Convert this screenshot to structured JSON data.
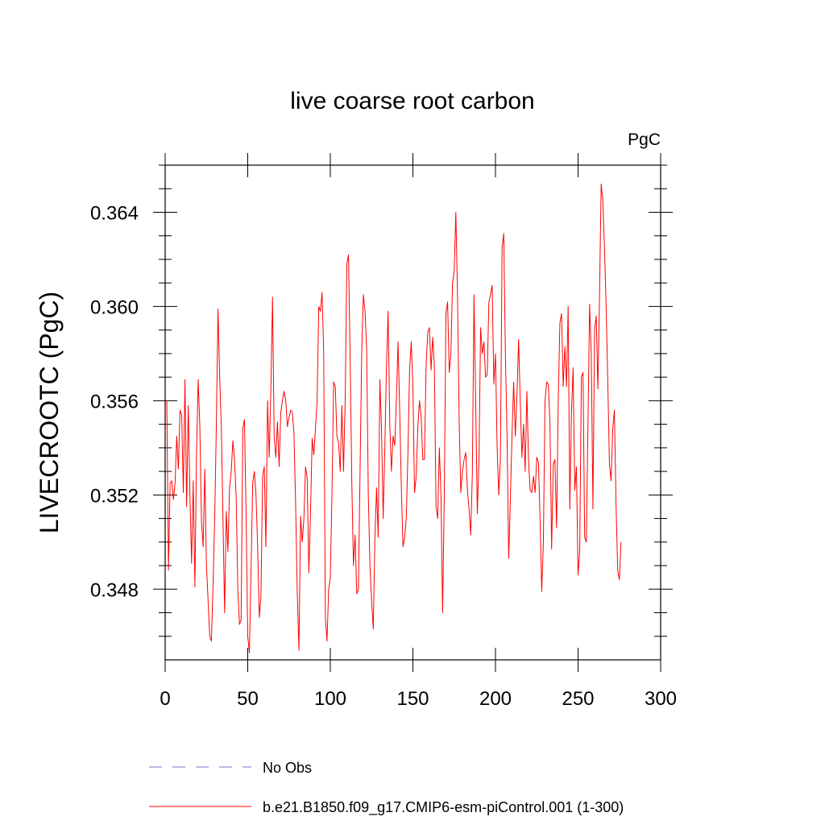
{
  "chart_data": {
    "type": "line",
    "title": "live coarse root carbon",
    "units_label": "PgC",
    "ylabel": "LIVECROOTC  (PgC)",
    "xlabel": "",
    "xlim": [
      0,
      300
    ],
    "ylim": [
      0.345,
      0.366
    ],
    "xticks": [
      0,
      50,
      100,
      150,
      200,
      250,
      300
    ],
    "xtick_labels": [
      "0",
      "50",
      "100",
      "150",
      "200",
      "250",
      "300"
    ],
    "yticks": [
      0.348,
      0.352,
      0.356,
      0.36,
      0.364
    ],
    "ytick_labels": [
      "0.348",
      "0.352",
      "0.356",
      "0.360",
      "0.364"
    ],
    "grid": false,
    "legend_position": "bottom",
    "series": [
      {
        "name": "No Obs",
        "legend_label": "No Obs",
        "color": "#7b6fc4",
        "style": "dashed",
        "values": []
      },
      {
        "name": "b.e21.B1850.f09_g17.CMIP6-esm-piControl.001 (1-300)",
        "legend_label": "b.e21.B1850.f09_g17.CMIP6-esm-piControl.001 (1-300)",
        "color": "#ff0000",
        "style": "solid",
        "x_start": 1,
        "values": [
          0.356,
          0.3488,
          0.3525,
          0.3526,
          0.3518,
          0.3525,
          0.3545,
          0.3531,
          0.3556,
          0.3554,
          0.3521,
          0.3569,
          0.3515,
          0.3558,
          0.352,
          0.3491,
          0.3526,
          0.3481,
          0.3538,
          0.3569,
          0.3549,
          0.3509,
          0.3498,
          0.3531,
          0.349,
          0.3475,
          0.346,
          0.3458,
          0.3482,
          0.351,
          0.355,
          0.3599,
          0.357,
          0.3549,
          0.351,
          0.347,
          0.3513,
          0.3496,
          0.3523,
          0.353,
          0.3543,
          0.3535,
          0.3519,
          0.348,
          0.3465,
          0.3467,
          0.3548,
          0.3552,
          0.3512,
          0.346,
          0.3453,
          0.3488,
          0.3525,
          0.353,
          0.352,
          0.3498,
          0.3468,
          0.3477,
          0.3528,
          0.3532,
          0.3498,
          0.356,
          0.3536,
          0.3565,
          0.3604,
          0.3545,
          0.3536,
          0.3551,
          0.3532,
          0.3555,
          0.356,
          0.3564,
          0.356,
          0.3549,
          0.3553,
          0.3556,
          0.3555,
          0.3546,
          0.3516,
          0.3478,
          0.3454,
          0.3511,
          0.35,
          0.351,
          0.3532,
          0.3527,
          0.3487,
          0.3512,
          0.3544,
          0.3537,
          0.3548,
          0.356,
          0.36,
          0.3598,
          0.3606,
          0.358,
          0.3468,
          0.3458,
          0.348,
          0.3485,
          0.352,
          0.3568,
          0.3566,
          0.3545,
          0.3542,
          0.353,
          0.3558,
          0.353,
          0.356,
          0.3618,
          0.3622,
          0.3578,
          0.3526,
          0.349,
          0.3503,
          0.3478,
          0.348,
          0.353,
          0.358,
          0.3605,
          0.3598,
          0.3582,
          0.352,
          0.349,
          0.3475,
          0.3463,
          0.3502,
          0.3523,
          0.3502,
          0.3569,
          0.3548,
          0.351,
          0.354,
          0.3575,
          0.3598,
          0.355,
          0.353,
          0.3545,
          0.3541,
          0.356,
          0.3585,
          0.3556,
          0.3523,
          0.3498,
          0.3502,
          0.351,
          0.3538,
          0.3573,
          0.3585,
          0.3566,
          0.3521,
          0.3528,
          0.3549,
          0.356,
          0.3553,
          0.3535,
          0.3535,
          0.3575,
          0.3589,
          0.3591,
          0.3573,
          0.3587,
          0.3575,
          0.3515,
          0.351,
          0.354,
          0.352,
          0.347,
          0.352,
          0.3597,
          0.3602,
          0.3572,
          0.358,
          0.361,
          0.3615,
          0.364,
          0.3605,
          0.3552,
          0.3521,
          0.353,
          0.3535,
          0.3538,
          0.3522,
          0.3514,
          0.3503,
          0.3529,
          0.3605,
          0.356,
          0.3512,
          0.3535,
          0.3591,
          0.358,
          0.3585,
          0.357,
          0.3571,
          0.3602,
          0.3605,
          0.3609,
          0.3567,
          0.358,
          0.354,
          0.352,
          0.3536,
          0.3625,
          0.3631,
          0.358,
          0.3545,
          0.3493,
          0.3518,
          0.3545,
          0.3568,
          0.3545,
          0.3562,
          0.3586,
          0.356,
          0.3536,
          0.355,
          0.353,
          0.3564,
          0.3535,
          0.3522,
          0.3521,
          0.3528,
          0.3521,
          0.3536,
          0.3534,
          0.351,
          0.3479,
          0.35,
          0.356,
          0.3568,
          0.3567,
          0.355,
          0.3497,
          0.3533,
          0.3535,
          0.3506,
          0.356,
          0.3593,
          0.3597,
          0.3566,
          0.3583,
          0.3566,
          0.36,
          0.3514,
          0.3555,
          0.3574,
          0.3522,
          0.3532,
          0.3486,
          0.3496,
          0.357,
          0.3572,
          0.3502,
          0.35,
          0.355,
          0.3601,
          0.358,
          0.3514,
          0.359,
          0.3596,
          0.3565,
          0.3605,
          0.3652,
          0.3645,
          0.3625,
          0.36,
          0.3568,
          0.3533,
          0.3526,
          0.3548,
          0.3556,
          0.3516,
          0.3488,
          0.3484,
          0.35
        ]
      }
    ]
  }
}
